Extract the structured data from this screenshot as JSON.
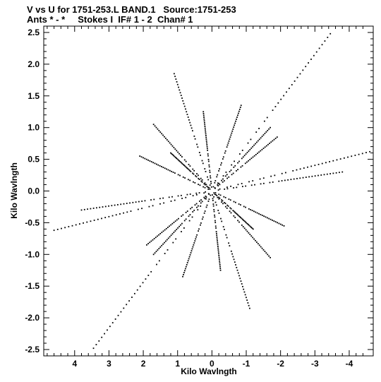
{
  "chart_data": {
    "type": "scatter",
    "title": "V vs U for 1751-253.L BAND.1   Source:1751-253",
    "subtitle": "Ants * - *     Stokes I  IF# 1 - 2  Chan# 1",
    "xlabel": "Kilo Wavlngth",
    "ylabel": "Kilo Wavlngth",
    "xlim": [
      4.9,
      -4.7
    ],
    "ylim": [
      -2.6,
      2.6
    ],
    "x_ticks": [
      4,
      3,
      2,
      1,
      0,
      -1,
      -2,
      -3,
      -4
    ],
    "x_tick_labels": [
      "4",
      "3",
      "2",
      "1",
      "0",
      "-1",
      "-2",
      "-3",
      "-4"
    ],
    "y_ticks": [
      2.5,
      2.0,
      1.5,
      1.0,
      0.5,
      0.0,
      -0.5,
      -1.0,
      -1.5,
      -2.0,
      -2.5
    ],
    "y_tick_labels": [
      "2.5",
      "2.0",
      "1.5",
      "1.0",
      "0.5",
      "0.0",
      "-0.5",
      "-1.0",
      "-1.5",
      "-2.0",
      "-2.5"
    ],
    "grid": false,
    "marker_color": "#000000",
    "series": [
      {
        "pattern": "radial tracks",
        "tracks": [
          {
            "x": -3.45,
            "y": 2.48
          },
          {
            "x": 3.45,
            "y": -2.48
          },
          {
            "x": -4.6,
            "y": 0.62
          },
          {
            "x": 4.6,
            "y": -0.62
          },
          {
            "x": 1.9,
            "y": -0.85
          },
          {
            "x": -1.9,
            "y": 0.85
          },
          {
            "x": 2.1,
            "y": 0.55
          },
          {
            "x": -2.1,
            "y": -0.55
          },
          {
            "x": -0.85,
            "y": 1.35
          },
          {
            "x": 0.85,
            "y": -1.35
          },
          {
            "x": 0.25,
            "y": 1.25
          },
          {
            "x": -0.25,
            "y": -1.25
          },
          {
            "x": -1.7,
            "y": 1.0
          },
          {
            "x": 1.7,
            "y": -1.0
          },
          {
            "x": 1.7,
            "y": 1.05
          },
          {
            "x": -1.7,
            "y": -1.05
          },
          {
            "x": 1.1,
            "y": 1.85
          },
          {
            "x": -1.1,
            "y": -1.85
          },
          {
            "x": 3.8,
            "y": -0.3
          },
          {
            "x": -3.8,
            "y": 0.3
          },
          {
            "x": -1.2,
            "y": -0.6
          },
          {
            "x": 1.2,
            "y": 0.6
          }
        ]
      }
    ]
  }
}
